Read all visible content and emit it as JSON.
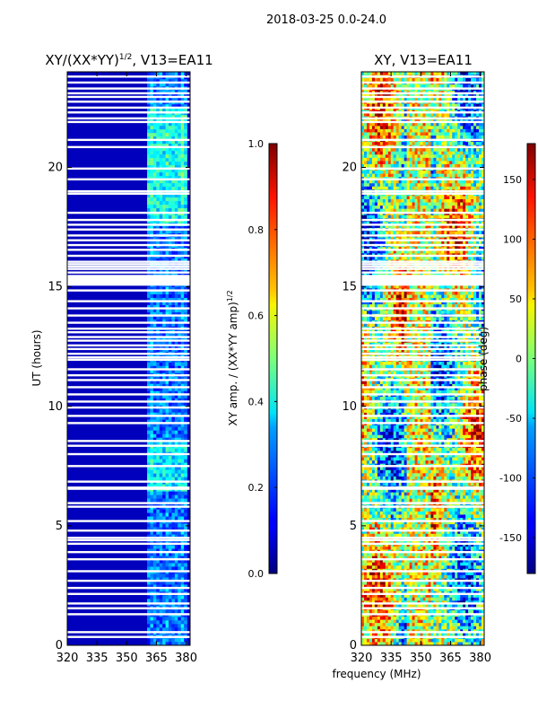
{
  "suptitle": "2018-03-25 0.0-24.0",
  "xlabel_shared": "frequency (MHz)",
  "chart_data": [
    {
      "type": "heatmap",
      "title_main": "XY/(XX*YY)",
      "title_exp": "1/2",
      "title_suffix": ", V13=EA11",
      "ylabel": "UT (hours)",
      "xlim": [
        320,
        382
      ],
      "ylim": [
        0,
        24
      ],
      "xticks": [
        320,
        335,
        350,
        365,
        380
      ],
      "yticks": [
        0,
        5,
        10,
        15,
        20
      ],
      "colorbar": {
        "label_main": "XY amp. / (XX*YY amp)",
        "label_exp": "1/2",
        "range": [
          0.0,
          1.0
        ],
        "ticks": [
          "0.0",
          "0.2",
          "0.4",
          "0.6",
          "0.8",
          "1.0"
        ],
        "colormap": "jet"
      },
      "bright_band_mhz": [
        361,
        380
      ],
      "flagged_hours": [
        23.8,
        23.55,
        23.3,
        23.1,
        22.95,
        22.75,
        22.5,
        22.3,
        22.05,
        21.9,
        21.15,
        20.85,
        19.95,
        19.5,
        19.0,
        18.9,
        18.1,
        17.8,
        17.6,
        17.4,
        17.15,
        16.95,
        16.75,
        16.55,
        16.3,
        16.05,
        15.95,
        15.85,
        15.75,
        15.6,
        15.4,
        15.1,
        14.85,
        14.4,
        14.1,
        13.8,
        13.5,
        13.25,
        13.1,
        12.9,
        12.75,
        12.55,
        12.4,
        12.2,
        12.05,
        11.95,
        11.55,
        11.3,
        11.1,
        10.8,
        10.5,
        10.2,
        9.95,
        9.6,
        9.3,
        8.55,
        8.35,
        8.0,
        7.5,
        6.85,
        6.6,
        6.55,
        5.95,
        5.8,
        5.2,
        4.8,
        4.5,
        4.4,
        4.25,
        3.9,
        3.6,
        3.1,
        2.7,
        2.4,
        2.15,
        1.75,
        1.55,
        1.3,
        0.55,
        0.35
      ]
    },
    {
      "type": "heatmap",
      "title": "XY, V13=EA11",
      "xlim": [
        320,
        382
      ],
      "ylim": [
        0,
        24
      ],
      "xticks": [
        320,
        335,
        350,
        365,
        380
      ],
      "yticks": [
        0,
        5,
        10,
        15,
        20
      ],
      "colorbar": {
        "label": "phase (deg)",
        "range": [
          -180,
          180
        ],
        "ticks": [
          150,
          100,
          50,
          0,
          -50,
          -100,
          -150
        ],
        "colormap": "jet"
      },
      "flagged_hours": [
        23.8,
        23.55,
        23.3,
        23.1,
        22.95,
        22.75,
        22.5,
        22.3,
        22.05,
        21.9,
        21.15,
        20.85,
        19.95,
        19.5,
        19.0,
        18.9,
        18.1,
        17.8,
        17.6,
        17.4,
        17.15,
        16.95,
        16.75,
        16.55,
        16.3,
        16.05,
        15.95,
        15.85,
        15.75,
        15.6,
        15.4,
        15.1,
        14.85,
        14.4,
        14.1,
        13.8,
        13.5,
        13.25,
        13.1,
        12.9,
        12.75,
        12.55,
        12.4,
        12.2,
        12.05,
        11.95,
        11.55,
        11.3,
        11.1,
        10.8,
        10.5,
        10.2,
        9.95,
        9.6,
        9.3,
        8.55,
        8.35,
        8.0,
        7.5,
        6.85,
        6.6,
        6.55,
        5.95,
        5.8,
        5.2,
        4.8,
        4.5,
        4.4,
        4.25,
        3.9,
        3.6,
        3.1,
        2.7,
        2.4,
        2.15,
        1.75,
        1.55,
        1.3,
        0.55,
        0.35
      ]
    }
  ]
}
